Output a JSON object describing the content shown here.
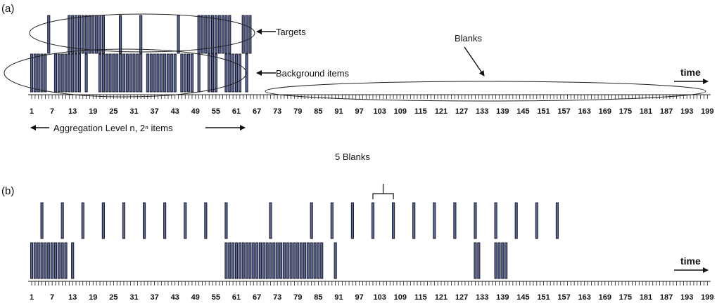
{
  "panels": [
    {
      "label": "(a)",
      "time_label": "time",
      "tick_labels": [
        "1",
        "7",
        "13",
        "19",
        "25",
        "31",
        "37",
        "43",
        "49",
        "55",
        "61",
        "67",
        "73",
        "79",
        "85",
        "91",
        "97",
        "103",
        "109",
        "115",
        "121",
        "127",
        "133",
        "139",
        "145",
        "151",
        "157",
        "163",
        "169",
        "175",
        "181",
        "187",
        "193",
        "199"
      ],
      "annotations": {
        "targets": "Targets",
        "background": "Background items",
        "blanks": "Blanks",
        "aggregation": "Aggregation Level n, 2ⁿ items"
      },
      "targets": [
        6,
        12,
        13,
        14,
        15,
        16,
        17,
        18,
        19,
        20,
        21,
        22,
        27,
        33,
        44,
        50,
        51,
        52,
        53,
        54,
        55,
        56,
        57,
        58,
        59,
        63,
        64,
        65
      ],
      "background": [
        1,
        2,
        3,
        4,
        5,
        8,
        9,
        10,
        11,
        12,
        13,
        14,
        15,
        17,
        21,
        22,
        23,
        24,
        25,
        26,
        27,
        28,
        29,
        30,
        31,
        32,
        33,
        35,
        36,
        37,
        38,
        39,
        40,
        41,
        42,
        43,
        45,
        46,
        47,
        48,
        50,
        53,
        54,
        55,
        58,
        59,
        60,
        61,
        62,
        64
      ]
    },
    {
      "label": "(b)",
      "time_label": "time",
      "blanks_annotation": "5 Blanks",
      "tick_labels": [
        "1",
        "7",
        "13",
        "19",
        "25",
        "31",
        "37",
        "43",
        "49",
        "55",
        "61",
        "67",
        "73",
        "79",
        "85",
        "91",
        "97",
        "103",
        "109",
        "115",
        "121",
        "127",
        "133",
        "139",
        "145",
        "151",
        "157",
        "163",
        "169",
        "175",
        "181",
        "187",
        "193",
        "199"
      ],
      "targets": [
        4,
        10,
        16,
        22,
        28,
        34,
        40,
        46,
        52,
        58,
        71,
        83,
        89,
        95,
        101,
        107,
        113,
        119,
        125,
        131,
        137,
        143,
        149,
        155
      ],
      "background": [
        1,
        2,
        3,
        4,
        5,
        6,
        7,
        8,
        9,
        10,
        11,
        13,
        58,
        59,
        60,
        61,
        62,
        63,
        64,
        65,
        66,
        67,
        68,
        69,
        70,
        71,
        72,
        73,
        74,
        75,
        76,
        77,
        78,
        79,
        80,
        81,
        82,
        83,
        84,
        85,
        86,
        90,
        131,
        132,
        137,
        138,
        139,
        140
      ]
    }
  ],
  "colors": {
    "bar_fill": "#5b6696",
    "bar_stroke": "#10121f",
    "axis": "#222222"
  }
}
